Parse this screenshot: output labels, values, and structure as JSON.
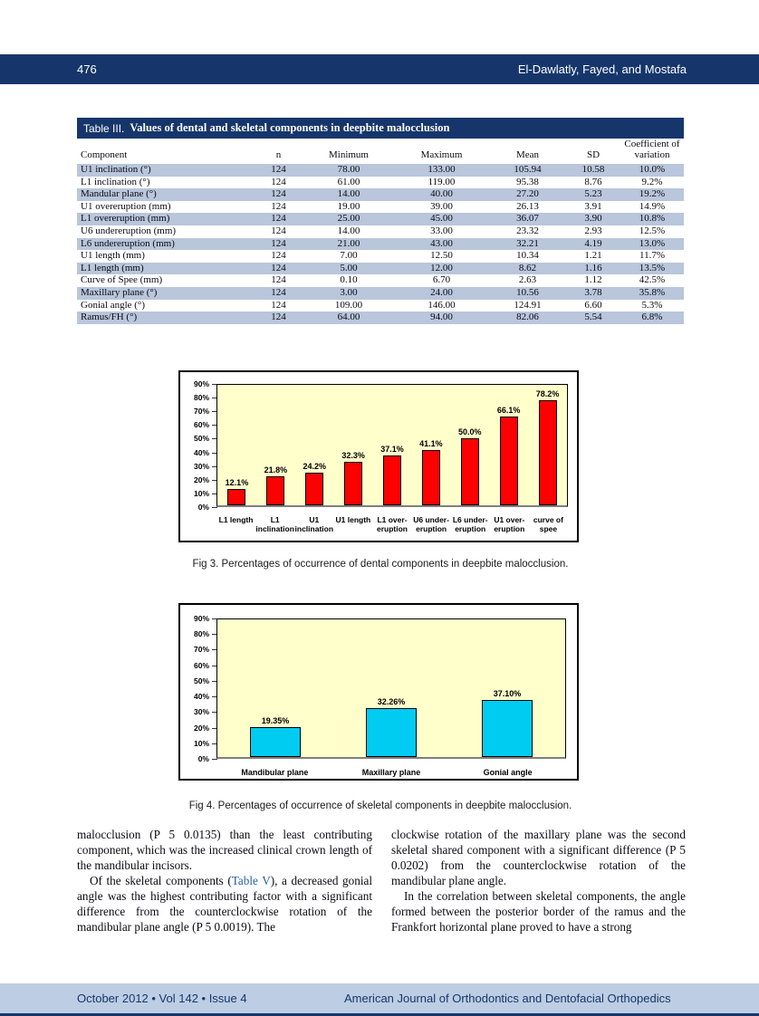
{
  "header": {
    "page_number": "476",
    "authors": "El-Dawlatly, Fayed, and Mostafa"
  },
  "footer": {
    "issue_info": "October 2012 • Vol 142 • Issue 4",
    "journal_name": "American Journal of Orthodontics and Dentofacial Orthopedics"
  },
  "table": {
    "title_label": "Table III.",
    "title_text": "Values of dental and skeletal components in deepbite malocclusion",
    "columns": [
      "Component",
      "n",
      "Minimum",
      "Maximum",
      "Mean",
      "SD",
      "Coefficient of variation"
    ],
    "rows": [
      [
        "U1 inclination (°)",
        "124",
        "78.00",
        "133.00",
        "105.94",
        "10.58",
        "10.0%"
      ],
      [
        "L1 inclination (°)",
        "124",
        "61.00",
        "119.00",
        "95.38",
        "8.76",
        "9.2%"
      ],
      [
        "Mandular plane (°)",
        "124",
        "14.00",
        "40.00",
        "27.20",
        "5.23",
        "19.2%"
      ],
      [
        "U1 overeruption (mm)",
        "124",
        "19.00",
        "39.00",
        "26.13",
        "3.91",
        "14.9%"
      ],
      [
        "L1 overeruption (mm)",
        "124",
        "25.00",
        "45.00",
        "36.07",
        "3.90",
        "10.8%"
      ],
      [
        "U6 undereruption (mm)",
        "124",
        "14.00",
        "33.00",
        "23.32",
        "2.93",
        "12.5%"
      ],
      [
        "L6 undereruption (mm)",
        "124",
        "21.00",
        "43.00",
        "32.21",
        "4.19",
        "13.0%"
      ],
      [
        "U1 length (mm)",
        "124",
        "7.00",
        "12.50",
        "10.34",
        "1.21",
        "11.7%"
      ],
      [
        "L1 length (mm)",
        "124",
        "5.00",
        "12.00",
        "8.62",
        "1.16",
        "13.5%"
      ],
      [
        "Curve of Spee (mm)",
        "124",
        "0.10",
        "6.70",
        "2.63",
        "1.12",
        "42.5%"
      ],
      [
        "Maxillary plane (°)",
        "124",
        "3.00",
        "24.00",
        "10.56",
        "3.78",
        "35.8%"
      ],
      [
        "Gonial angle (°)",
        "124",
        "109.00",
        "146.00",
        "124.91",
        "6.60",
        "5.3%"
      ],
      [
        "Ramus/FH (°)",
        "124",
        "64.00",
        "94.00",
        "82.06",
        "5.54",
        "6.8%"
      ]
    ]
  },
  "chart_data": [
    {
      "id": "fig3",
      "type": "bar",
      "title": "",
      "categories": [
        [
          "L1 length"
        ],
        [
          "L1",
          "inclination"
        ],
        [
          "U1",
          "inclination"
        ],
        [
          "U1 length"
        ],
        [
          "L1 over-",
          "eruption"
        ],
        [
          "U6 under-",
          "eruption"
        ],
        [
          "L6 under-",
          "eruption"
        ],
        [
          "U1 over-",
          "eruption"
        ],
        [
          "curve of",
          "spee"
        ]
      ],
      "values": [
        12.1,
        21.8,
        24.2,
        32.3,
        37.1,
        41.1,
        50.0,
        66.1,
        78.2
      ],
      "labels": [
        "12.1%",
        "21.8%",
        "24.2%",
        "32.3%",
        "37.1%",
        "41.1%",
        "50.0%",
        "66.1%",
        "78.2%"
      ],
      "xlabel": "",
      "ylabel": "",
      "ylim": [
        0,
        90
      ],
      "yticks": [
        "90%",
        "80%",
        "70%",
        "60%",
        "50%",
        "40%",
        "30%",
        "20%",
        "10%",
        "0%"
      ],
      "grid": false,
      "legend": "none",
      "bar_color": "#FF0000",
      "plot_bg": "#FFFFCC",
      "caption": "Fig 3.  Percentages of occurrence of dental components in deepbite malocclusion."
    },
    {
      "id": "fig4",
      "type": "bar",
      "title": "",
      "categories": [
        [
          "Mandibular plane"
        ],
        [
          "Maxillary plane"
        ],
        [
          "Gonial angle"
        ]
      ],
      "values": [
        19.35,
        32.26,
        37.1
      ],
      "labels": [
        "19.35%",
        "32.26%",
        "37.10%"
      ],
      "xlabel": "",
      "ylabel": "",
      "ylim": [
        0,
        90
      ],
      "yticks": [
        "90%",
        "80%",
        "70%",
        "60%",
        "50%",
        "40%",
        "30%",
        "20%",
        "10%",
        "0%"
      ],
      "grid": false,
      "legend": "none",
      "bar_color": "#00CCF2",
      "plot_bg": "#FFFFCC",
      "caption": "Fig 4.  Percentages of occurrence of skeletal components in deepbite malocclusion."
    }
  ],
  "body": {
    "col1_p1": "malocclusion (P 5 0.0135) than the least contributing component, which was the increased clinical crown length of the mandibular incisors.",
    "col1_p2_before": "Of the skeletal components (",
    "col1_p2_link": "Table V",
    "col1_p2_after": "), a decreased gonial angle was the highest contributing factor with a significant difference from the counterclockwise rotation of the mandibular plane angle (P 5 0.0019). The",
    "col2_p1": "clockwise rotation of the maxillary plane was the second skeletal shared component with a significant difference (P 5 0.0202) from the counterclockwise rotation of the mandibular plane angle.",
    "col2_p2": "In the correlation between skeletal components, the angle formed between the posterior border of the ramus and the Frankfort horizontal plane proved to have a strong"
  }
}
